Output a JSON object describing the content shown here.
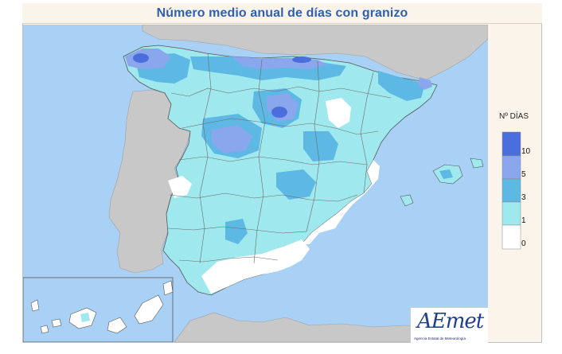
{
  "title": "Número medio anual de días con granizo",
  "legend": {
    "title": "Nº DÍAS",
    "classes": [
      {
        "label": "10",
        "color": "#4a6fdc"
      },
      {
        "label": "5",
        "color": "#8aa7ee"
      },
      {
        "label": "3",
        "color": "#5db8e3"
      },
      {
        "label": "1",
        "color": "#9fe8ee"
      },
      {
        "label": "0",
        "color": "#ffffff"
      }
    ]
  },
  "logo": {
    "text": "AEmet",
    "subtext": "Agencia Estatal de Meteorología"
  },
  "colors": {
    "sea": "#a9d0f5",
    "land_outside": "#c8c8c8",
    "background": "#fbf4ea",
    "title": "#2f5fb3"
  }
}
